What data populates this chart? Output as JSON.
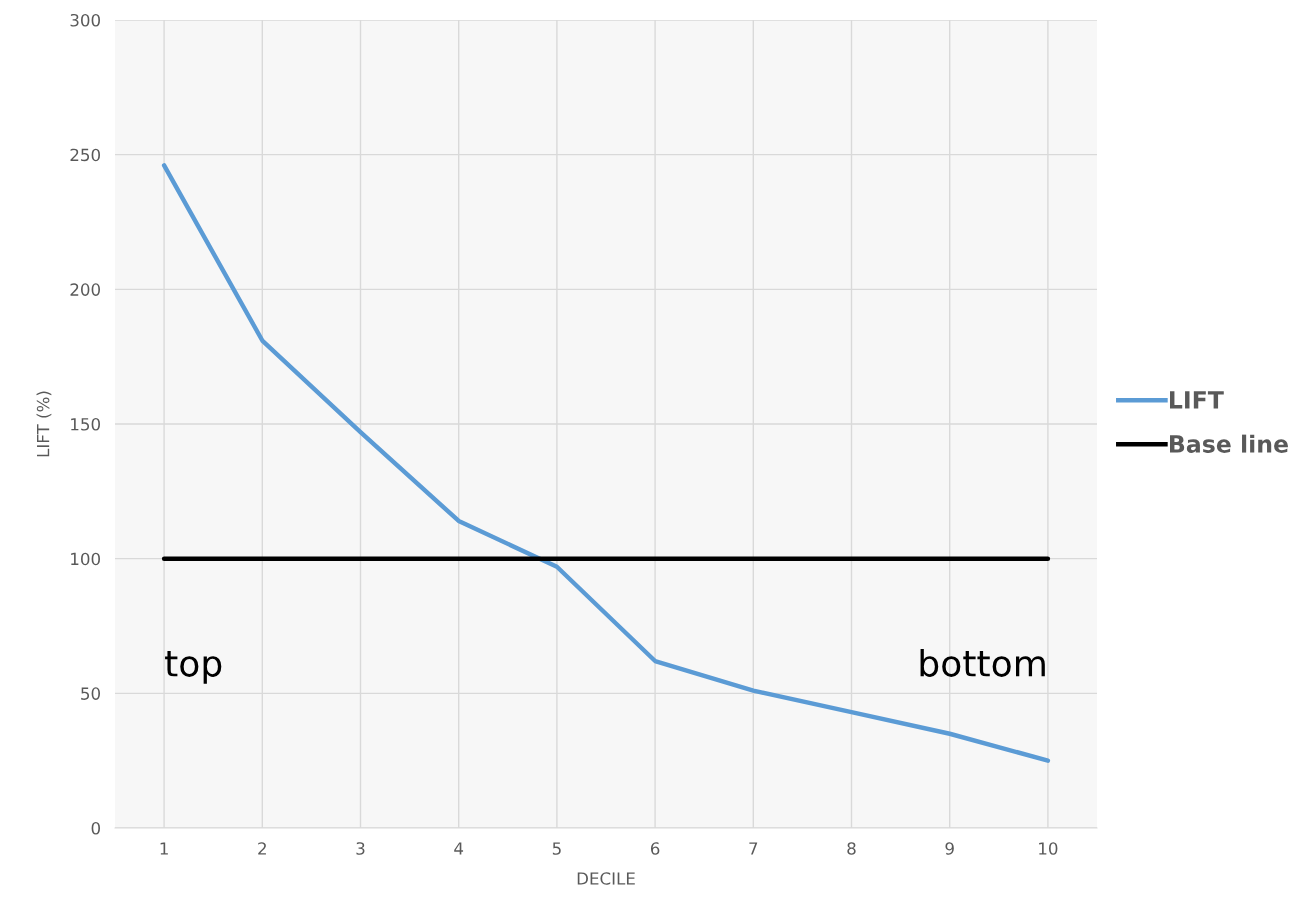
{
  "chart_data": {
    "type": "line",
    "xlabel": "DECILE",
    "ylabel": "LIFT (%)",
    "categories": [
      "1",
      "2",
      "3",
      "4",
      "5",
      "6",
      "7",
      "8",
      "9",
      "10"
    ],
    "series": [
      {
        "name": "LIFT",
        "color": "#5b9bd5",
        "values": [
          246,
          181,
          147,
          114,
          97,
          62,
          51,
          43,
          35,
          25
        ]
      },
      {
        "name": "Base line",
        "color": "#000000",
        "values": [
          100,
          100,
          100,
          100,
          100,
          100,
          100,
          100,
          100,
          100
        ]
      }
    ],
    "ylim": [
      0,
      300
    ],
    "yticks": [
      0,
      50,
      100,
      150,
      200,
      250,
      300
    ],
    "grid": true,
    "legend": "right",
    "marker": "none",
    "line_style": "solid",
    "annotations": [
      "top",
      "bottom"
    ]
  }
}
